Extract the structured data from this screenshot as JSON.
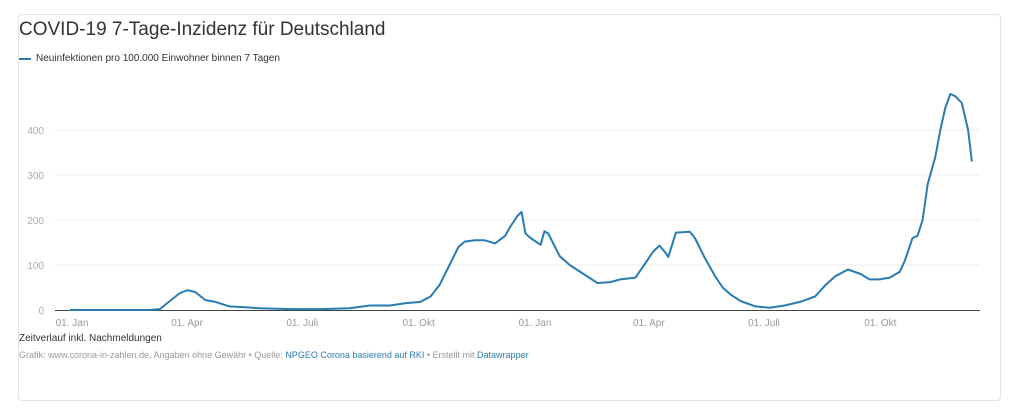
{
  "chart_data": {
    "type": "line",
    "title": "COVID-19 7-Tage-Inzidenz für Deutschland",
    "series": [
      {
        "name": "Neuinfektionen pro 100.000 Einwohner binnen 7 Tagen",
        "color": "#2a7bb3",
        "x_unit": "days since 01. Jan 2020",
        "points": [
          [
            0,
            0
          ],
          [
            63,
            0
          ],
          [
            71,
            2
          ],
          [
            79,
            20
          ],
          [
            87,
            38
          ],
          [
            93,
            44
          ],
          [
            99,
            40
          ],
          [
            107,
            22
          ],
          [
            115,
            18
          ],
          [
            126,
            8
          ],
          [
            150,
            4
          ],
          [
            174,
            2
          ],
          [
            198,
            2
          ],
          [
            221,
            4
          ],
          [
            237,
            10
          ],
          [
            253,
            10
          ],
          [
            265,
            15
          ],
          [
            277,
            18
          ],
          [
            285,
            30
          ],
          [
            292,
            55
          ],
          [
            300,
            100
          ],
          [
            307,
            140
          ],
          [
            312,
            152
          ],
          [
            320,
            155
          ],
          [
            328,
            155
          ],
          [
            336,
            148
          ],
          [
            344,
            165
          ],
          [
            348,
            185
          ],
          [
            354,
            210
          ],
          [
            357,
            218
          ],
          [
            360,
            170
          ],
          [
            364,
            160
          ],
          [
            372,
            145
          ],
          [
            375,
            175
          ],
          [
            378,
            170
          ],
          [
            387,
            120
          ],
          [
            395,
            100
          ],
          [
            407,
            78
          ],
          [
            417,
            60
          ],
          [
            427,
            62
          ],
          [
            435,
            68
          ],
          [
            447,
            72
          ],
          [
            455,
            105
          ],
          [
            461,
            130
          ],
          [
            466,
            143
          ],
          [
            470,
            130
          ],
          [
            473,
            118
          ],
          [
            476,
            145
          ],
          [
            479,
            172
          ],
          [
            490,
            174
          ],
          [
            494,
            160
          ],
          [
            502,
            115
          ],
          [
            510,
            75
          ],
          [
            516,
            50
          ],
          [
            522,
            35
          ],
          [
            530,
            20
          ],
          [
            542,
            8
          ],
          [
            553,
            5
          ],
          [
            565,
            10
          ],
          [
            577,
            18
          ],
          [
            589,
            30
          ],
          [
            597,
            55
          ],
          [
            605,
            75
          ],
          [
            615,
            90
          ],
          [
            625,
            80
          ],
          [
            632,
            68
          ],
          [
            640,
            68
          ],
          [
            648,
            72
          ],
          [
            656,
            85
          ],
          [
            660,
            110
          ],
          [
            666,
            160
          ],
          [
            670,
            165
          ],
          [
            674,
            200
          ],
          [
            678,
            280
          ],
          [
            684,
            340
          ],
          [
            688,
            400
          ],
          [
            692,
            450
          ],
          [
            696,
            480
          ],
          [
            700,
            475
          ],
          [
            705,
            460
          ],
          [
            710,
            400
          ],
          [
            713,
            330
          ]
        ]
      }
    ],
    "xticks": [
      {
        "day": 0,
        "label": "01. Jan"
      },
      {
        "day": 91,
        "label": "01. Apr"
      },
      {
        "day": 182,
        "label": "01. Juli"
      },
      {
        "day": 274,
        "label": "01. Okt"
      },
      {
        "day": 366,
        "label": "01. Jan"
      },
      {
        "day": 456,
        "label": "01. Apr"
      },
      {
        "day": 547,
        "label": "01. Juli"
      },
      {
        "day": 639,
        "label": "01. Okt"
      }
    ],
    "yticks": [
      0,
      100,
      200,
      300,
      400
    ],
    "ylim": [
      0,
      480
    ],
    "grid": true,
    "legend": "top-left"
  },
  "footer": {
    "note": "Zeitverlauf inkl. Nachmeldungen",
    "credit": "Grafik: www.corona-in-zahlen.de, Angaben ohne Gewähr • Quelle: ",
    "source_link": "NPGEO Corona basierend auf RKI",
    "made_with": " • Erstellt mit ",
    "tool_link": "Datawrapper"
  }
}
